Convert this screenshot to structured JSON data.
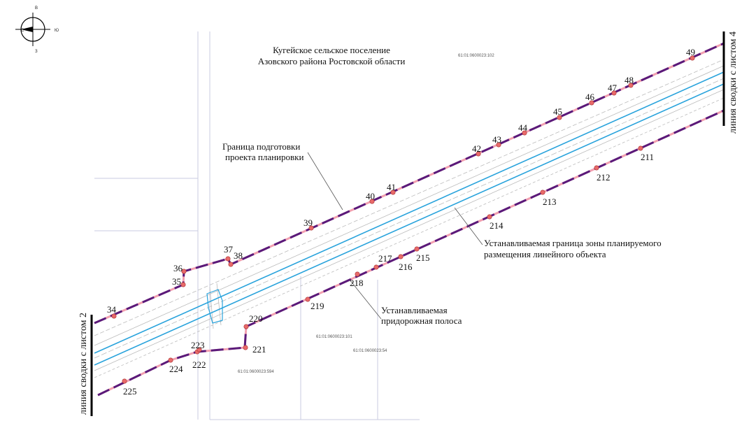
{
  "header": {
    "title_lines": [
      "Кугейское сельское поселение",
      "Азовского района Ростовской области"
    ]
  },
  "compass": {
    "labels": [
      "С",
      "В",
      "Ю",
      "З"
    ]
  },
  "parcels": [
    "61:01:0600023:102",
    "61:01:0600023:101",
    "61:01:0600023:54",
    "61:01:0600023:594"
  ],
  "annotations": [
    {
      "lines": [
        "Граница  подготовки",
        "проекта планировки"
      ]
    },
    {
      "lines": [
        "Устанавливаемая граница зоны планируемого",
        "размещения линейного объекта"
      ]
    },
    {
      "lines": [
        "Устанавливаемая",
        "придорожная полоса"
      ]
    }
  ],
  "sheet_links": [
    "линия сводки с листом 2",
    "линия сводки с листом 4"
  ],
  "points": [
    "34",
    "35",
    "36",
    "37",
    "38",
    "39",
    "40",
    "41",
    "42",
    "43",
    "44",
    "45",
    "46",
    "47",
    "48",
    "49",
    "225",
    "224",
    "222",
    "223",
    "221",
    "220",
    "219",
    "218",
    "217",
    "216",
    "215",
    "214",
    "213",
    "212",
    "211"
  ]
}
